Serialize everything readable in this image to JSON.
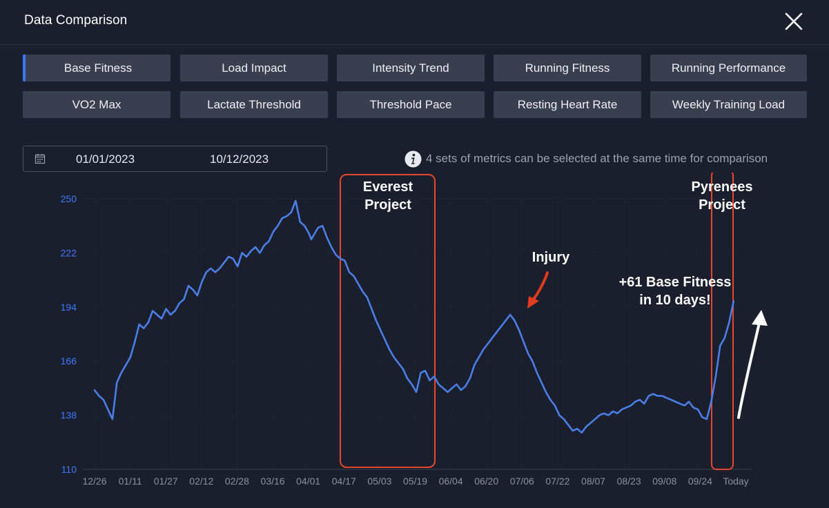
{
  "modal": {
    "title": "Data Comparison",
    "close_icon": "close-icon"
  },
  "metrics": {
    "row1": [
      "Base Fitness",
      "Load Impact",
      "Intensity Trend",
      "Running Fitness",
      "Running Performance"
    ],
    "row2": [
      "VO2 Max",
      "Lactate Threshold",
      "Threshold Pace",
      "Resting Heart Rate",
      "Weekly Training Load"
    ],
    "active": "Base Fitness"
  },
  "date_range": {
    "start": "01/01/2023",
    "end": "10/12/2023",
    "icon": "calendar-icon"
  },
  "info": {
    "icon": "info-icon",
    "text": "4 sets of metrics can be selected at the same time for comparison"
  },
  "colors": {
    "accent": "#3c78ff",
    "line": "#4a7fe8",
    "annotation_box": "#e8462c",
    "background": "#1b1f2d"
  },
  "annotations": {
    "everest": "Everest\nProject",
    "pyrenees": "Pyrenees\nProject",
    "injury": "Injury",
    "gain": "+61 Base Fitness\nin 10 days!"
  },
  "chart_data": {
    "type": "line",
    "title": "",
    "series": [
      {
        "name": "Base Fitness",
        "x": [
          0,
          2,
          4,
          6,
          8,
          10,
          12,
          14,
          16,
          18,
          20,
          22,
          24,
          26,
          28,
          30,
          32,
          34,
          36,
          38,
          40,
          42,
          44,
          46,
          48,
          50,
          52,
          54,
          56,
          58,
          60,
          62,
          64,
          66,
          68,
          70,
          72,
          74,
          76,
          78,
          80,
          82,
          84,
          86,
          88,
          90,
          92,
          94,
          96,
          97,
          98,
          100,
          102,
          104,
          106,
          108,
          110,
          112,
          114,
          116,
          118,
          120,
          122,
          124,
          126,
          128,
          130,
          132,
          134,
          136,
          138,
          140,
          142,
          144,
          146,
          148,
          150,
          152,
          154,
          156,
          158,
          160,
          162,
          164,
          166,
          168,
          170,
          172,
          174,
          176,
          178,
          180,
          182,
          184,
          186,
          188,
          190,
          192,
          194,
          196,
          198,
          200,
          202,
          204,
          206,
          208,
          210,
          212,
          214,
          216,
          218,
          220,
          222,
          224,
          226,
          228,
          230,
          232,
          234,
          236,
          238,
          240,
          242,
          244,
          246,
          248,
          250,
          252,
          254,
          256,
          258,
          260,
          262,
          264,
          266,
          268,
          270,
          272,
          274,
          276,
          278,
          280,
          282,
          284,
          286
        ],
        "values": [
          151,
          148,
          146,
          141,
          136,
          155,
          160,
          164,
          168,
          176,
          185,
          183,
          186,
          192,
          190,
          188,
          193,
          190,
          192,
          196,
          198,
          205,
          203,
          200,
          207,
          212,
          214,
          212,
          214,
          217,
          220,
          219,
          215,
          222,
          220,
          223,
          225,
          222,
          226,
          228,
          233,
          236,
          240,
          241,
          243,
          249,
          238,
          236,
          232,
          229,
          231,
          235,
          236,
          230,
          225,
          221,
          219,
          218,
          212,
          210,
          206,
          202,
          199,
          193,
          187,
          182,
          177,
          172,
          168,
          165,
          162,
          157,
          154,
          150,
          160,
          161,
          156,
          158,
          154,
          152,
          150,
          152,
          154,
          151,
          153,
          157,
          164,
          168,
          172,
          175,
          178,
          181,
          184,
          187,
          190,
          187,
          182,
          176,
          170,
          166,
          160,
          155,
          150,
          146,
          143,
          138,
          136,
          133,
          130,
          131,
          129,
          132,
          134,
          136,
          138,
          139,
          138,
          140,
          139,
          141,
          142,
          143,
          145,
          146,
          144,
          148,
          149,
          148,
          148,
          147,
          146,
          145,
          144,
          143,
          145,
          142,
          141,
          137,
          136,
          145,
          158,
          174,
          178,
          186,
          197
        ]
      }
    ],
    "xlabel": "",
    "ylabel": "",
    "x_ticks": [
      "12/26",
      "01/11",
      "01/27",
      "02/12",
      "02/28",
      "03/16",
      "04/01",
      "04/17",
      "05/03",
      "05/19",
      "06/04",
      "06/20",
      "07/06",
      "07/22",
      "08/07",
      "08/23",
      "09/08",
      "09/24",
      "Today"
    ],
    "y_ticks": [
      250,
      222,
      194,
      166,
      138,
      110
    ],
    "ylim": [
      110,
      250
    ],
    "xlim": [
      0,
      287
    ],
    "grid": true
  }
}
